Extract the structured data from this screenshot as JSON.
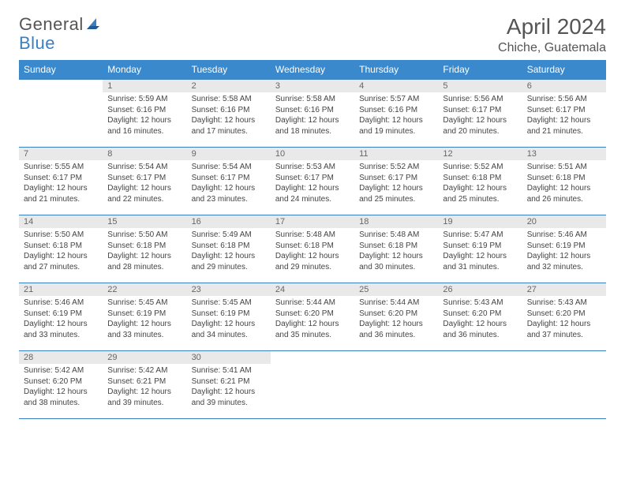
{
  "logo": {
    "word1": "General",
    "word2": "Blue"
  },
  "title": "April 2024",
  "location": "Chiche, Guatemala",
  "colors": {
    "header_bg": "#3a89cc",
    "header_text": "#ffffff",
    "border": "#3a7fc4",
    "daynum_bg": "#e9e9e9",
    "text": "#444444"
  },
  "daysOfWeek": [
    "Sunday",
    "Monday",
    "Tuesday",
    "Wednesday",
    "Thursday",
    "Friday",
    "Saturday"
  ],
  "weeks": [
    [
      null,
      {
        "n": "1",
        "sr": "5:59 AM",
        "ss": "6:16 PM",
        "dl": "12 hours and 16 minutes."
      },
      {
        "n": "2",
        "sr": "5:58 AM",
        "ss": "6:16 PM",
        "dl": "12 hours and 17 minutes."
      },
      {
        "n": "3",
        "sr": "5:58 AM",
        "ss": "6:16 PM",
        "dl": "12 hours and 18 minutes."
      },
      {
        "n": "4",
        "sr": "5:57 AM",
        "ss": "6:16 PM",
        "dl": "12 hours and 19 minutes."
      },
      {
        "n": "5",
        "sr": "5:56 AM",
        "ss": "6:17 PM",
        "dl": "12 hours and 20 minutes."
      },
      {
        "n": "6",
        "sr": "5:56 AM",
        "ss": "6:17 PM",
        "dl": "12 hours and 21 minutes."
      }
    ],
    [
      {
        "n": "7",
        "sr": "5:55 AM",
        "ss": "6:17 PM",
        "dl": "12 hours and 21 minutes."
      },
      {
        "n": "8",
        "sr": "5:54 AM",
        "ss": "6:17 PM",
        "dl": "12 hours and 22 minutes."
      },
      {
        "n": "9",
        "sr": "5:54 AM",
        "ss": "6:17 PM",
        "dl": "12 hours and 23 minutes."
      },
      {
        "n": "10",
        "sr": "5:53 AM",
        "ss": "6:17 PM",
        "dl": "12 hours and 24 minutes."
      },
      {
        "n": "11",
        "sr": "5:52 AM",
        "ss": "6:17 PM",
        "dl": "12 hours and 25 minutes."
      },
      {
        "n": "12",
        "sr": "5:52 AM",
        "ss": "6:18 PM",
        "dl": "12 hours and 25 minutes."
      },
      {
        "n": "13",
        "sr": "5:51 AM",
        "ss": "6:18 PM",
        "dl": "12 hours and 26 minutes."
      }
    ],
    [
      {
        "n": "14",
        "sr": "5:50 AM",
        "ss": "6:18 PM",
        "dl": "12 hours and 27 minutes."
      },
      {
        "n": "15",
        "sr": "5:50 AM",
        "ss": "6:18 PM",
        "dl": "12 hours and 28 minutes."
      },
      {
        "n": "16",
        "sr": "5:49 AM",
        "ss": "6:18 PM",
        "dl": "12 hours and 29 minutes."
      },
      {
        "n": "17",
        "sr": "5:48 AM",
        "ss": "6:18 PM",
        "dl": "12 hours and 29 minutes."
      },
      {
        "n": "18",
        "sr": "5:48 AM",
        "ss": "6:18 PM",
        "dl": "12 hours and 30 minutes."
      },
      {
        "n": "19",
        "sr": "5:47 AM",
        "ss": "6:19 PM",
        "dl": "12 hours and 31 minutes."
      },
      {
        "n": "20",
        "sr": "5:46 AM",
        "ss": "6:19 PM",
        "dl": "12 hours and 32 minutes."
      }
    ],
    [
      {
        "n": "21",
        "sr": "5:46 AM",
        "ss": "6:19 PM",
        "dl": "12 hours and 33 minutes."
      },
      {
        "n": "22",
        "sr": "5:45 AM",
        "ss": "6:19 PM",
        "dl": "12 hours and 33 minutes."
      },
      {
        "n": "23",
        "sr": "5:45 AM",
        "ss": "6:19 PM",
        "dl": "12 hours and 34 minutes."
      },
      {
        "n": "24",
        "sr": "5:44 AM",
        "ss": "6:20 PM",
        "dl": "12 hours and 35 minutes."
      },
      {
        "n": "25",
        "sr": "5:44 AM",
        "ss": "6:20 PM",
        "dl": "12 hours and 36 minutes."
      },
      {
        "n": "26",
        "sr": "5:43 AM",
        "ss": "6:20 PM",
        "dl": "12 hours and 36 minutes."
      },
      {
        "n": "27",
        "sr": "5:43 AM",
        "ss": "6:20 PM",
        "dl": "12 hours and 37 minutes."
      }
    ],
    [
      {
        "n": "28",
        "sr": "5:42 AM",
        "ss": "6:20 PM",
        "dl": "12 hours and 38 minutes."
      },
      {
        "n": "29",
        "sr": "5:42 AM",
        "ss": "6:21 PM",
        "dl": "12 hours and 39 minutes."
      },
      {
        "n": "30",
        "sr": "5:41 AM",
        "ss": "6:21 PM",
        "dl": "12 hours and 39 minutes."
      },
      null,
      null,
      null,
      null
    ]
  ]
}
